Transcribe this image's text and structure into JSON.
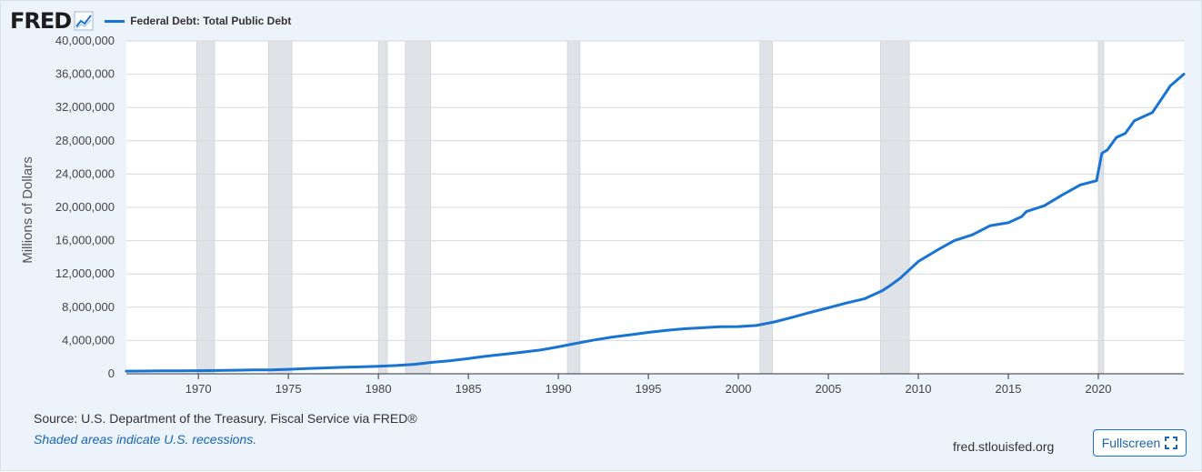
{
  "header": {
    "logo_text": "FRED",
    "logo_icon": "chart-line-icon",
    "legend_label": "Federal Debt: Total Public Debt"
  },
  "footer": {
    "source": "Source: U.S. Department of the Treasury. Fiscal Service via FRED®",
    "note": "Shaded areas indicate U.S. recessions.",
    "site": "fred.stlouisfed.org",
    "fullscreen_label": "Fullscreen",
    "fullscreen_icon": "expand-icon"
  },
  "colors": {
    "line": "#1873d3",
    "recession": "#dfe3e8",
    "background": "#ecf3fa",
    "plot": "#ffffff"
  },
  "chart_data": {
    "type": "line",
    "title": "",
    "xlabel": "",
    "ylabel": "Millions of Dollars",
    "xlim": [
      1966,
      2024.75
    ],
    "ylim": [
      0,
      40000000
    ],
    "grid": true,
    "legend_position": "top-left",
    "x_ticks": [
      1970,
      1975,
      1980,
      1985,
      1990,
      1995,
      2000,
      2005,
      2010,
      2015,
      2020
    ],
    "y_ticks": [
      0,
      4000000,
      8000000,
      12000000,
      16000000,
      20000000,
      24000000,
      28000000,
      32000000,
      36000000,
      40000000
    ],
    "y_tick_labels": [
      "0",
      "4,000,000",
      "8,000,000",
      "12,000,000",
      "16,000,000",
      "20,000,000",
      "24,000,000",
      "28,000,000",
      "32,000,000",
      "36,000,000",
      "40,000,000"
    ],
    "recessions": [
      [
        1969.9,
        1970.9
      ],
      [
        1973.9,
        1975.2
      ],
      [
        1980.0,
        1980.5
      ],
      [
        1981.5,
        1982.9
      ],
      [
        1990.5,
        1991.2
      ],
      [
        2001.2,
        2001.9
      ],
      [
        2007.9,
        2009.5
      ],
      [
        2020.0,
        2020.3
      ]
    ],
    "series": [
      {
        "name": "Federal Debt: Total Public Debt",
        "x": [
          1966,
          1967,
          1968,
          1969,
          1970,
          1971,
          1972,
          1973,
          1974,
          1975,
          1976,
          1977,
          1978,
          1979,
          1980,
          1981,
          1982,
          1983,
          1984,
          1985,
          1986,
          1987,
          1988,
          1989,
          1990,
          1991,
          1992,
          1993,
          1994,
          1995,
          1996,
          1997,
          1998,
          1999,
          2000,
          2001,
          2002,
          2003,
          2004,
          2005,
          2006,
          2007,
          2008,
          2008.5,
          2009,
          2010,
          2011,
          2012,
          2013,
          2014,
          2015,
          2015.75,
          2016,
          2017,
          2018,
          2019,
          2019.9,
          2020.2,
          2020.5,
          2021,
          2021.5,
          2022,
          2023,
          2023.5,
          2024,
          2024.75
        ],
        "y": [
          320000,
          327000,
          348000,
          354000,
          370000,
          398000,
          427000,
          458000,
          475000,
          533000,
          620000,
          699000,
          772000,
          827000,
          908000,
          998000,
          1142000,
          1377000,
          1572000,
          1823000,
          2125000,
          2350000,
          2602000,
          2857000,
          3233000,
          3665000,
          4065000,
          4411000,
          4693000,
          4974000,
          5225000,
          5413000,
          5526000,
          5656000,
          5674000,
          5807000,
          6228000,
          6783000,
          7379000,
          7933000,
          8507000,
          9008000,
          9986000,
          10700000,
          11500000,
          13500000,
          14800000,
          16000000,
          16700000,
          17800000,
          18150000,
          18900000,
          19500000,
          20200000,
          21500000,
          22700000,
          23200000,
          26500000,
          26900000,
          28400000,
          28900000,
          30400000,
          31400000,
          33000000,
          34600000,
          36000000
        ]
      }
    ]
  }
}
